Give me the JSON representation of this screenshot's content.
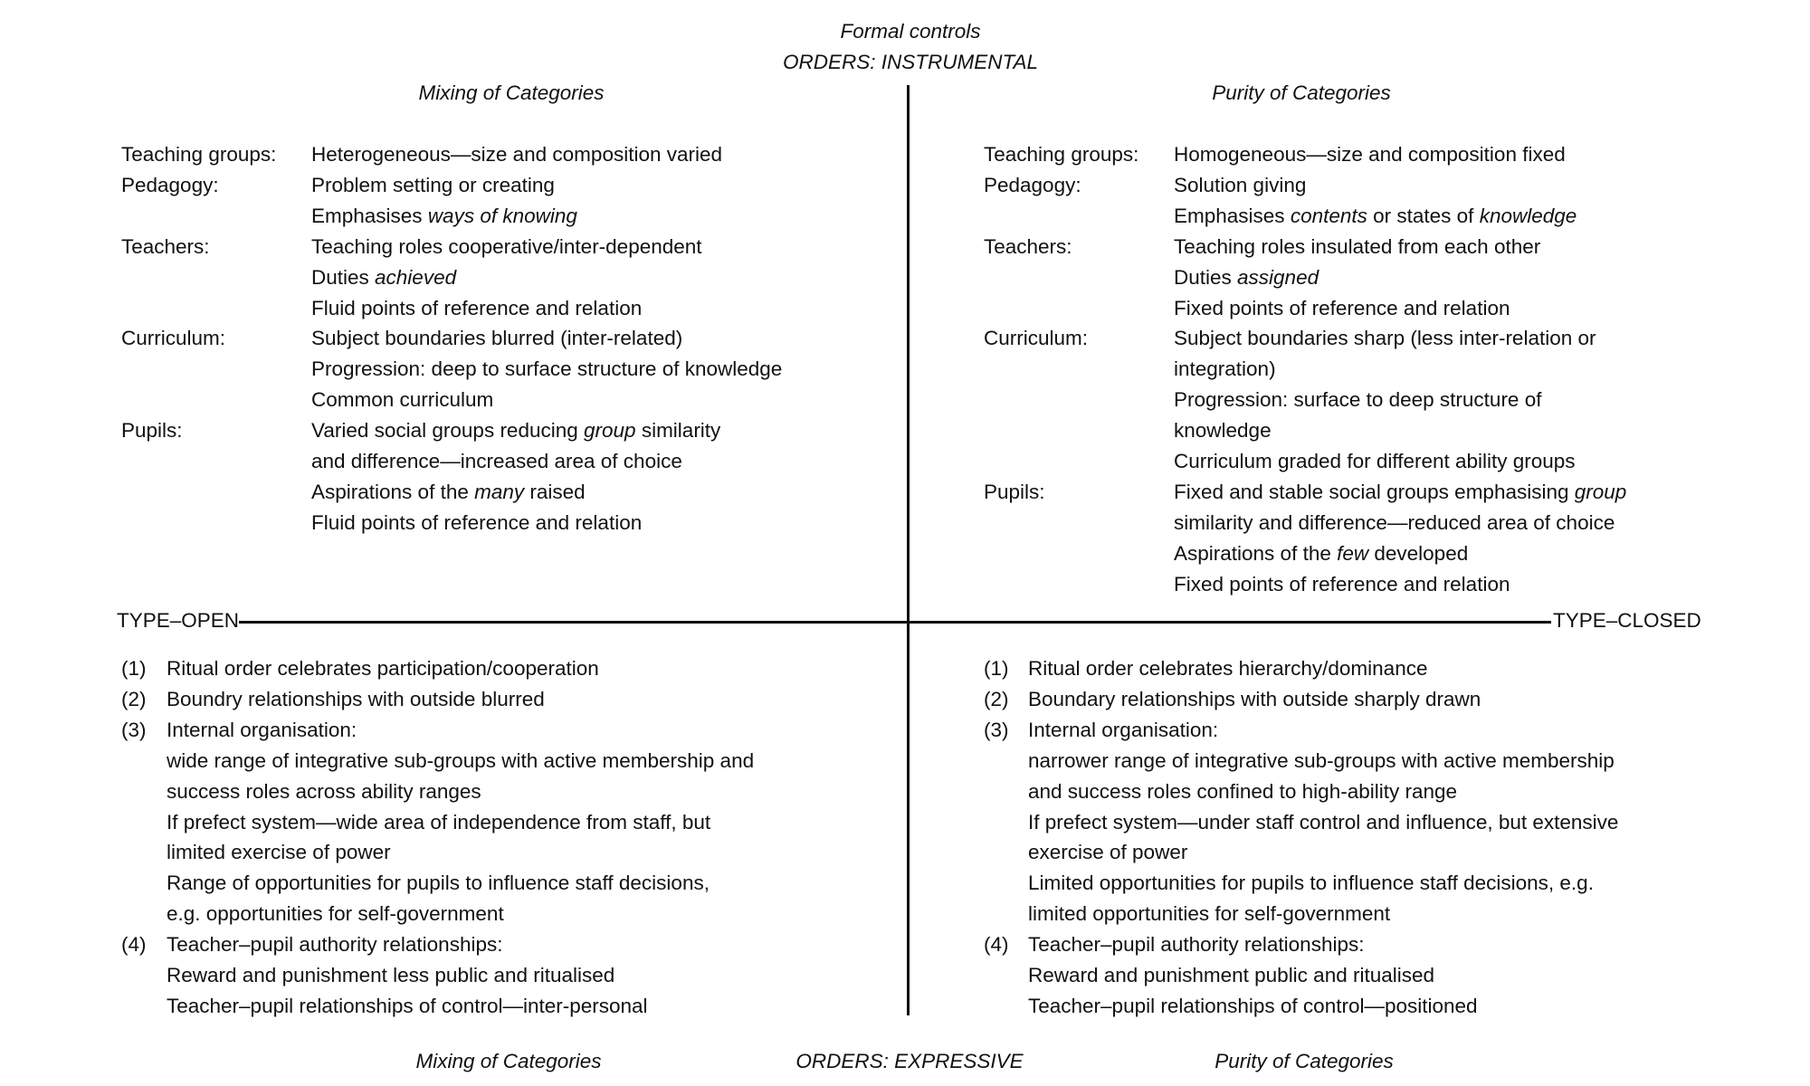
{
  "header": {
    "title": "Formal controls",
    "subtitle": "ORDERS: INSTRUMENTAL"
  },
  "top_left_heading": "Mixing of Categories",
  "top_right_heading": "Purity of Categories",
  "axis": {
    "left": "TYPE–OPEN",
    "right": "TYPE–CLOSED"
  },
  "footer": {
    "left": "Mixing of Categories",
    "center": "ORDERS: EXPRESSIVE",
    "right": "Purity of Categories"
  },
  "top_left": [
    {
      "label": "Teaching groups:",
      "lines": [
        [
          {
            "text": "Heterogeneous—size and composition varied"
          }
        ]
      ]
    },
    {
      "label": "Pedagogy:",
      "lines": [
        [
          {
            "text": "Problem setting or creating"
          }
        ],
        [
          {
            "text": "Emphasises "
          },
          {
            "text": "ways of knowing",
            "italic": true
          }
        ]
      ]
    },
    {
      "label": "Teachers:",
      "lines": [
        [
          {
            "text": "Teaching roles cooperative/inter-dependent"
          }
        ],
        [
          {
            "text": "Duties "
          },
          {
            "text": "achieved",
            "italic": true
          }
        ],
        [
          {
            "text": "Fluid points of reference and relation"
          }
        ]
      ]
    },
    {
      "label": "Curriculum:",
      "lines": [
        [
          {
            "text": "Subject boundaries blurred (inter-related)"
          }
        ],
        [
          {
            "text": "Progression: deep to surface structure of knowledge"
          }
        ],
        [
          {
            "text": "Common curriculum"
          }
        ]
      ]
    },
    {
      "label": "Pupils:",
      "lines": [
        [
          {
            "text": "Varied social groups reducing "
          },
          {
            "text": "group",
            "italic": true
          },
          {
            "text": " similarity"
          }
        ],
        [
          {
            "text": "and difference—increased area of choice"
          }
        ],
        [
          {
            "text": "Aspirations of the "
          },
          {
            "text": "many",
            "italic": true
          },
          {
            "text": " raised"
          }
        ],
        [
          {
            "text": "Fluid points of reference and relation"
          }
        ]
      ]
    }
  ],
  "top_right": [
    {
      "label": "Teaching groups:",
      "lines": [
        [
          {
            "text": "Homogeneous—size and composition fixed"
          }
        ]
      ]
    },
    {
      "label": "Pedagogy:",
      "lines": [
        [
          {
            "text": "Solution giving"
          }
        ],
        [
          {
            "text": "Emphasises "
          },
          {
            "text": "contents",
            "italic": true
          },
          {
            "text": " or states of "
          },
          {
            "text": "knowledge",
            "italic": true
          }
        ]
      ]
    },
    {
      "label": "Teachers:",
      "lines": [
        [
          {
            "text": "Teaching roles insulated from each other"
          }
        ],
        [
          {
            "text": "Duties "
          },
          {
            "text": "assigned",
            "italic": true
          }
        ],
        [
          {
            "text": "Fixed points of reference and relation"
          }
        ]
      ]
    },
    {
      "label": "Curriculum:",
      "lines": [
        [
          {
            "text": "Subject boundaries sharp (less inter-relation or"
          }
        ],
        [
          {
            "text": "integration)"
          }
        ],
        [
          {
            "text": "Progression: surface to deep structure of"
          }
        ],
        [
          {
            "text": "knowledge"
          }
        ],
        [
          {
            "text": "Curriculum graded for different ability groups"
          }
        ]
      ]
    },
    {
      "label": "Pupils:",
      "lines": [
        [
          {
            "text": "Fixed and stable social groups emphasising "
          },
          {
            "text": "group",
            "italic": true
          }
        ],
        [
          {
            "text": "similarity and difference—reduced area of choice"
          }
        ],
        [
          {
            "text": "Aspirations of the "
          },
          {
            "text": "few",
            "italic": true
          },
          {
            "text": " developed"
          }
        ],
        [
          {
            "text": "Fixed points of reference and relation"
          }
        ]
      ]
    }
  ],
  "bottom_left": [
    {
      "label": "(1)",
      "lines": [
        [
          {
            "text": "Ritual order celebrates participation/cooperation"
          }
        ]
      ]
    },
    {
      "label": "(2)",
      "lines": [
        [
          {
            "text": "Boundry relationships with outside blurred"
          }
        ]
      ]
    },
    {
      "label": "(3)",
      "lines": [
        [
          {
            "text": "Internal organisation:"
          }
        ],
        [
          {
            "text": "wide range of integrative sub-groups with active membership and"
          }
        ],
        [
          {
            "text": "success roles across ability ranges"
          }
        ],
        [
          {
            "text": "If prefect system—wide area of independence from staff, but"
          }
        ],
        [
          {
            "text": "limited exercise of power"
          }
        ],
        [
          {
            "text": "Range of opportunities for pupils to influence staff decisions,"
          }
        ],
        [
          {
            "text": "e.g. opportunities for self-government"
          }
        ]
      ]
    },
    {
      "label": "(4)",
      "lines": [
        [
          {
            "text": "Teacher–pupil authority relationships:"
          }
        ],
        [
          {
            "text": "Reward and punishment less public and ritualised"
          }
        ],
        [
          {
            "text": "Teacher–pupil relationships of control—inter-personal"
          }
        ]
      ]
    }
  ],
  "bottom_right": [
    {
      "label": "(1)",
      "lines": [
        [
          {
            "text": "Ritual order celebrates hierarchy/dominance"
          }
        ]
      ]
    },
    {
      "label": "(2)",
      "lines": [
        [
          {
            "text": "Boundary relationships with outside sharply drawn"
          }
        ]
      ]
    },
    {
      "label": "(3)",
      "lines": [
        [
          {
            "text": "Internal organisation:"
          }
        ],
        [
          {
            "text": "narrower range of integrative sub-groups with active membership"
          }
        ],
        [
          {
            "text": "and success roles confined to high-ability range"
          }
        ],
        [
          {
            "text": "If prefect system—under staff control and influence, but extensive"
          }
        ],
        [
          {
            "text": "exercise of power"
          }
        ],
        [
          {
            "text": "Limited opportunities for pupils to influence staff decisions, e.g."
          }
        ],
        [
          {
            "text": "limited opportunities for self-government"
          }
        ]
      ]
    },
    {
      "label": "(4)",
      "lines": [
        [
          {
            "text": "Teacher–pupil authority relationships:"
          }
        ],
        [
          {
            "text": "Reward and punishment public and ritualised"
          }
        ],
        [
          {
            "text": "Teacher–pupil relationships of control—positioned"
          }
        ]
      ]
    }
  ]
}
